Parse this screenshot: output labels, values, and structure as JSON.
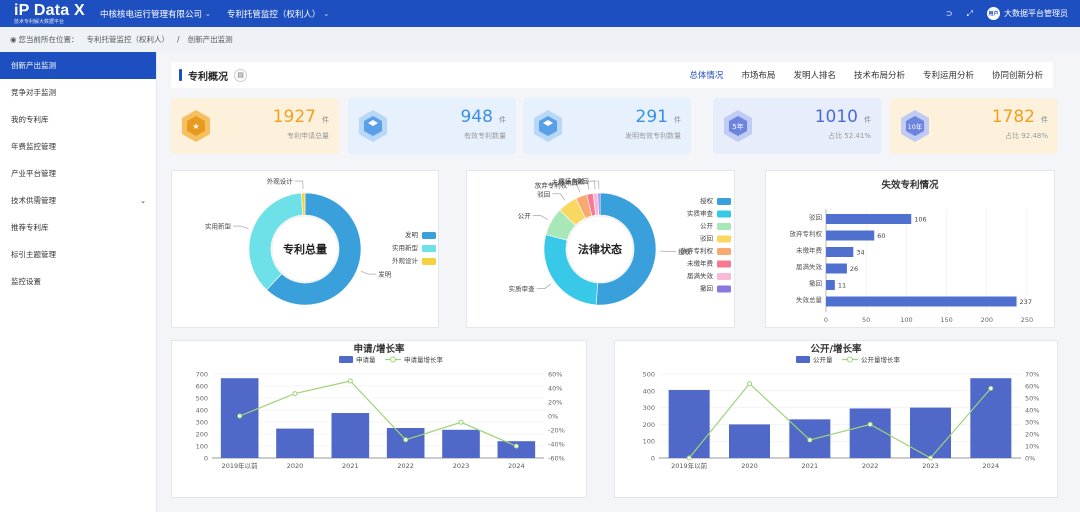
{
  "header": {
    "brand": "iP Data X",
    "brand_tag": "技术专利解大数据平台",
    "nav": [
      {
        "label": "中核核电运行管理有限公司"
      },
      {
        "label": "专利托管监控（权利人）"
      }
    ],
    "user": "大数据平台管理员",
    "avatar_text": "用户"
  },
  "breadcrumb": {
    "prefix": "您当前所在位置：",
    "items": [
      "专利托管监控（权利人）",
      "/",
      "创新产出监测"
    ]
  },
  "sidebar": {
    "items": [
      {
        "label": "创新产出监测"
      },
      {
        "label": "竞争对手监测"
      },
      {
        "label": "我的专利库"
      },
      {
        "label": "年费监控管理"
      },
      {
        "label": "产业平台管理"
      },
      {
        "label": "技术供需管理"
      },
      {
        "label": "推荐专利库"
      },
      {
        "label": "标引主题管理"
      },
      {
        "label": "监控设置"
      }
    ]
  },
  "overview": {
    "title": "专利概况",
    "tabs": [
      "总体情况",
      "市场布局",
      "发明人排名",
      "技术布局分析",
      "专利运用分析",
      "协同创新分析"
    ]
  },
  "stats": [
    {
      "value": "1927",
      "unit": "件",
      "label": "专利申请总量",
      "color": "#f0a020"
    },
    {
      "value": "948",
      "unit": "件",
      "label": "有效专利数量",
      "color": "#3a8fe0"
    },
    {
      "value": "291",
      "unit": "件",
      "label": "发明有效专利数量",
      "color": "#3a8fe0"
    },
    {
      "value": "1010",
      "unit": "件",
      "label": "占比 52.41%",
      "color": "#4a6cd8",
      "badge": "5年"
    },
    {
      "value": "1782",
      "unit": "件",
      "label": "占比 92.48%",
      "color": "#f0a020",
      "badge": "10年"
    }
  ],
  "charts": {
    "total": {
      "center": "专利总量",
      "slices": [
        {
          "name": "发明",
          "value": 1195,
          "color": "#3aa0dc"
        },
        {
          "name": "实用新型",
          "value": 712,
          "color": "#6ee0e8"
        },
        {
          "name": "外观设计",
          "value": 20,
          "color": "#f5d040"
        }
      ]
    },
    "legal": {
      "center": "法律状态",
      "slices": [
        {
          "name": "授权",
          "value": 948,
          "color": "#3aa0dc"
        },
        {
          "name": "实质审查",
          "value": 520,
          "color": "#38c8e8"
        },
        {
          "name": "公开",
          "value": 150,
          "color": "#a8e8b8"
        },
        {
          "name": "驳回",
          "value": 106,
          "color": "#f8d860"
        },
        {
          "name": "放弃专利权",
          "value": 60,
          "color": "#f8a870"
        },
        {
          "name": "未缴年费",
          "value": 34,
          "color": "#f87890"
        },
        {
          "name": "届满失效",
          "value": 26,
          "color": "#f8b8d8"
        },
        {
          "name": "撤回",
          "value": 11,
          "color": "#8878e0"
        }
      ]
    },
    "invalid": {
      "title": "失效专利情况",
      "categories": [
        "驳回",
        "放弃专利权",
        "未缴年费",
        "届满失效",
        "撤回",
        "失效总量"
      ],
      "values": [
        106,
        60,
        34,
        26,
        11,
        237
      ],
      "xticks": [
        0,
        50,
        100,
        150,
        200,
        250
      ],
      "color": "#5070d0"
    },
    "apply": {
      "title": "申请/增长率",
      "legend_bar": "申请量",
      "legend_line": "申请量增长率",
      "categories": [
        "2019年以前",
        "2020",
        "2021",
        "2022",
        "2023",
        "2024"
      ],
      "bars": [
        665,
        245,
        375,
        250,
        235,
        140
      ],
      "rates": [
        0,
        32,
        50,
        -34,
        -9,
        -43
      ],
      "yticks": [
        0,
        100,
        200,
        300,
        400,
        500,
        600,
        700
      ],
      "rticks": [
        "-60%",
        "-40%",
        "-20%",
        "0%",
        "20%",
        "40%",
        "60%"
      ]
    },
    "publish": {
      "title": "公开/增长率",
      "legend_bar": "公开量",
      "legend_line": "公开量增长率",
      "categories": [
        "2019年以前",
        "2020",
        "2021",
        "2022",
        "2023",
        "2024"
      ],
      "bars": [
        405,
        200,
        230,
        295,
        300,
        475
      ],
      "rates": [
        0,
        62,
        15,
        28,
        0,
        58
      ],
      "yticks": [
        0,
        100,
        200,
        300,
        400,
        500
      ],
      "rticks": [
        "0%",
        "10%",
        "20%",
        "30%",
        "40%",
        "50%",
        "60%",
        "70%"
      ]
    }
  }
}
